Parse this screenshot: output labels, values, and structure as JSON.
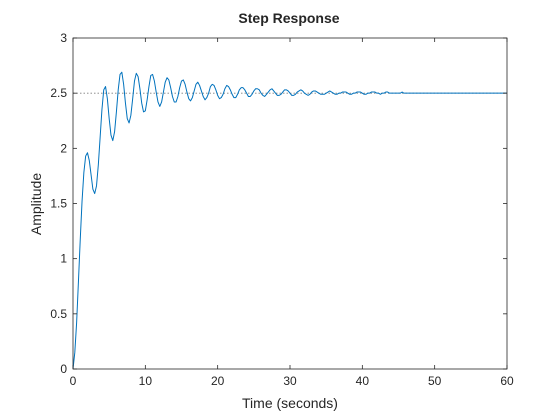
{
  "chart_data": {
    "type": "line",
    "title": "Step Response",
    "xlabel": "Time (seconds)",
    "ylabel": "Amplitude",
    "xlim": [
      0,
      60
    ],
    "ylim": [
      0,
      3
    ],
    "xticks": [
      0,
      10,
      20,
      30,
      40,
      50,
      60
    ],
    "yticks": [
      0,
      0.5,
      1,
      1.5,
      2,
      2.5,
      3
    ],
    "xtick_labels": [
      "0",
      "10",
      "20",
      "30",
      "40",
      "50",
      "60"
    ],
    "ytick_labels": [
      "0",
      "0.5",
      "1",
      "1.5",
      "2",
      "2.5",
      "3"
    ],
    "grid": false,
    "steady_state": 2.5,
    "colors": {
      "series": "#0072BD",
      "reference": "#7f7f7f",
      "axes": "#262626"
    },
    "series": [
      {
        "x": [
          0,
          0.25,
          0.5,
          0.75,
          1,
          1.25,
          1.5,
          1.75,
          2,
          2.25,
          2.5,
          2.75,
          3,
          3.25,
          3.5,
          3.75,
          4,
          4.25,
          4.5,
          4.75,
          5,
          5.25,
          5.5,
          5.75,
          6,
          6.25,
          6.5,
          6.75,
          7,
          7.25,
          7.5,
          7.75,
          8,
          8.25,
          8.5,
          8.75,
          9,
          9.25,
          9.5,
          9.75,
          10,
          10.25,
          10.5,
          10.75,
          11,
          11.25,
          11.5,
          11.75,
          12,
          12.25,
          12.5,
          12.75,
          13,
          13.25,
          13.5,
          13.75,
          14,
          14.25,
          14.5,
          14.75,
          15,
          15.25,
          15.5,
          15.75,
          16,
          16.25,
          16.5,
          16.75,
          17,
          17.25,
          17.5,
          17.75,
          18,
          18.25,
          18.5,
          18.75,
          19,
          19.25,
          19.5,
          19.75,
          20,
          20.25,
          20.5,
          20.75,
          21,
          21.25,
          21.5,
          21.75,
          22,
          22.25,
          22.5,
          22.75,
          23,
          23.25,
          23.5,
          23.75,
          24,
          24.25,
          24.5,
          24.75,
          25,
          25.25,
          25.5,
          25.75,
          26,
          26.25,
          26.5,
          26.75,
          27,
          27.25,
          27.5,
          27.75,
          28,
          28.25,
          28.5,
          28.75,
          29,
          29.25,
          29.5,
          29.75,
          30,
          30.25,
          30.5,
          30.75,
          31,
          31.25,
          31.5,
          31.75,
          32,
          32.25,
          32.5,
          32.75,
          33,
          33.25,
          33.5,
          33.75,
          34,
          34.25,
          34.5,
          34.75,
          35,
          35.25,
          35.5,
          35.75,
          36,
          36.25,
          36.5,
          36.75,
          37,
          37.25,
          37.5,
          37.75,
          38,
          38.25,
          38.5,
          38.75,
          39,
          39.25,
          39.5,
          39.75,
          40,
          40.25,
          40.5,
          40.75,
          41,
          41.25,
          41.5,
          41.75,
          42,
          42.25,
          42.5,
          42.75,
          43,
          43.25,
          43.5,
          43.75,
          44,
          44.25,
          44.5,
          44.75,
          45,
          45.25,
          45.5,
          45.75,
          46,
          46.25,
          46.5,
          46.75,
          47,
          47.25,
          47.5,
          47.75,
          48,
          48.25,
          48.5,
          48.75,
          49,
          49.25,
          49.5,
          49.75,
          50,
          50.25,
          50.5,
          50.75,
          51,
          51.25,
          51.5,
          51.75,
          52,
          52.25,
          52.5,
          52.75,
          53,
          53.25,
          53.5,
          53.75,
          54,
          54.25,
          54.5,
          54.75,
          55,
          55.25,
          55.5,
          55.75,
          56,
          56.25,
          56.5,
          56.75,
          57,
          57.25,
          57.5,
          57.75,
          58,
          58.25,
          58.5,
          58.75,
          59,
          59.25,
          59.5,
          59.75,
          60
        ],
        "values": [
          0,
          0.15,
          0.42,
          0.79,
          1.17,
          1.52,
          1.78,
          1.93,
          1.96,
          1.89,
          1.76,
          1.63,
          1.59,
          1.66,
          1.85,
          2.1,
          2.35,
          2.53,
          2.56,
          2.45,
          2.27,
          2.12,
          2.07,
          2.15,
          2.33,
          2.53,
          2.67,
          2.69,
          2.58,
          2.41,
          2.27,
          2.23,
          2.3,
          2.45,
          2.61,
          2.68,
          2.65,
          2.54,
          2.41,
          2.33,
          2.34,
          2.44,
          2.56,
          2.66,
          2.67,
          2.61,
          2.51,
          2.42,
          2.38,
          2.42,
          2.51,
          2.6,
          2.64,
          2.62,
          2.55,
          2.47,
          2.42,
          2.42,
          2.47,
          2.55,
          2.61,
          2.62,
          2.58,
          2.51,
          2.45,
          2.43,
          2.46,
          2.52,
          2.58,
          2.6,
          2.57,
          2.52,
          2.47,
          2.44,
          2.46,
          2.5,
          2.56,
          2.58,
          2.57,
          2.53,
          2.48,
          2.45,
          2.46,
          2.49,
          2.54,
          2.57,
          2.56,
          2.53,
          2.49,
          2.46,
          2.46,
          2.49,
          2.53,
          2.55,
          2.55,
          2.53,
          2.5,
          2.47,
          2.47,
          2.49,
          2.52,
          2.54,
          2.54,
          2.53,
          2.5,
          2.48,
          2.47,
          2.49,
          2.51,
          2.53,
          2.54,
          2.52,
          2.5,
          2.48,
          2.48,
          2.49,
          2.51,
          2.53,
          2.53,
          2.52,
          2.5,
          2.48,
          2.48,
          2.49,
          2.51,
          2.52,
          2.53,
          2.52,
          2.5,
          2.49,
          2.48,
          2.49,
          2.51,
          2.52,
          2.52,
          2.51,
          2.5,
          2.49,
          2.49,
          2.49,
          2.5,
          2.51,
          2.52,
          2.51,
          2.5,
          2.49,
          2.49,
          2.5,
          2.5,
          2.51,
          2.51,
          2.51,
          2.5,
          2.49,
          2.49,
          2.5,
          2.5,
          2.51,
          2.51,
          2.51,
          2.5,
          2.49,
          2.49,
          2.5,
          2.5,
          2.51,
          2.51,
          2.51,
          2.5,
          2.5,
          2.49,
          2.5,
          2.5,
          2.51,
          2.51,
          2.5,
          2.5,
          2.5,
          2.5,
          2.5,
          2.5,
          2.5,
          2.51,
          2.5,
          2.5,
          2.5,
          2.5,
          2.5,
          2.5,
          2.5,
          2.5,
          2.5,
          2.5,
          2.5,
          2.5,
          2.5,
          2.5,
          2.5,
          2.5,
          2.5,
          2.5,
          2.5,
          2.5,
          2.5,
          2.5,
          2.5,
          2.5,
          2.5,
          2.5,
          2.5,
          2.5,
          2.5,
          2.5,
          2.5,
          2.5,
          2.5,
          2.5,
          2.5,
          2.5,
          2.5,
          2.5,
          2.5,
          2.5,
          2.5,
          2.5,
          2.5,
          2.5,
          2.5,
          2.5,
          2.5,
          2.5,
          2.5,
          2.5,
          2.5,
          2.5,
          2.5,
          2.5,
          2.5,
          2.5,
          2.5,
          2.5
        ]
      }
    ]
  }
}
